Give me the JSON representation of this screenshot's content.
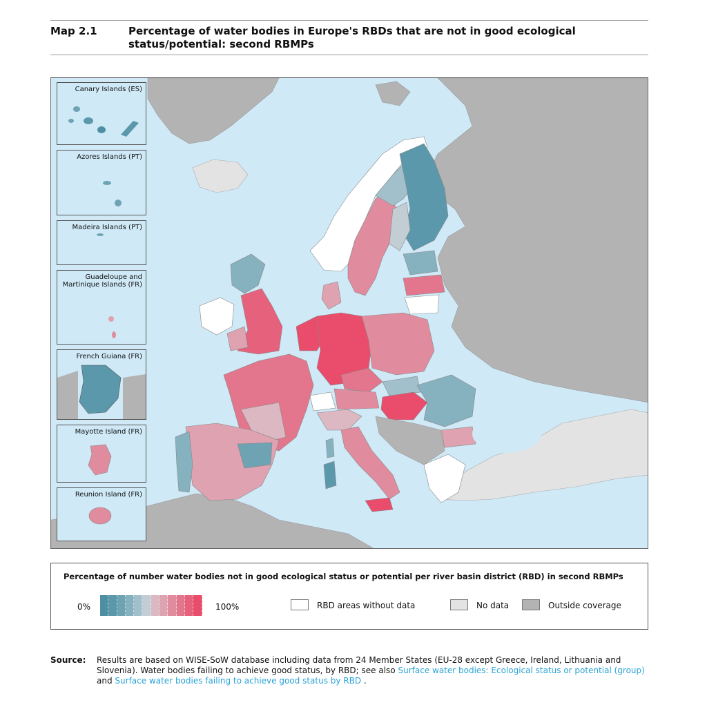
{
  "header": {
    "map_label": "Map 2.1",
    "title": "Percentage of water bodies in Europe's RBDs that are not in good ecological status/potential: second RBMPs"
  },
  "insets": [
    {
      "label": "Canary Islands (ES)"
    },
    {
      "label": "Azores Islands (PT)"
    },
    {
      "label": "Madeira Islands (PT)"
    },
    {
      "label": "Guadeloupe and\nMartinique Islands (FR)"
    },
    {
      "label": "French Guiana (FR)"
    },
    {
      "label": "Mayotte Island (FR)"
    },
    {
      "label": "Reunion Island (FR)"
    }
  ],
  "legend": {
    "title": "Percentage of number water bodies not in good ecological status or potential per river basin district (RBD) in second RBMPs",
    "min_label": "0%",
    "max_label": "100%",
    "ramp_colors": [
      "#4e8fa3",
      "#5b98ab",
      "#6ea3b3",
      "#86b1bf",
      "#a1c0cb",
      "#c3cdd4",
      "#dcb8c2",
      "#dfa2b0",
      "#e08c9e",
      "#e3768c",
      "#e6617b",
      "#e94d6b"
    ],
    "items": [
      {
        "label": "RBD areas without data",
        "color": "#ffffff"
      },
      {
        "label": "No data",
        "color": "#e3e3e3"
      },
      {
        "label": "Outside coverage",
        "color": "#b3b3b3"
      }
    ]
  },
  "colors": {
    "sea": "#cfe9f7",
    "outside": "#b3b3b3",
    "nodata": "#e3e3e3"
  },
  "source": {
    "label": "Source:",
    "text": "Results are based on WISE-SoW database including data from 24 Member States (EU-28 except Greece, Ireland, Lithuania and Slovenia). Water bodies failing to achieve good status, by RBD; see also",
    "link1": "Surface water bodies: Ecological status or potential (group)",
    "conj": "and",
    "link2": "Surface water bodies failing to achieve good status by RBD",
    "end": "."
  }
}
